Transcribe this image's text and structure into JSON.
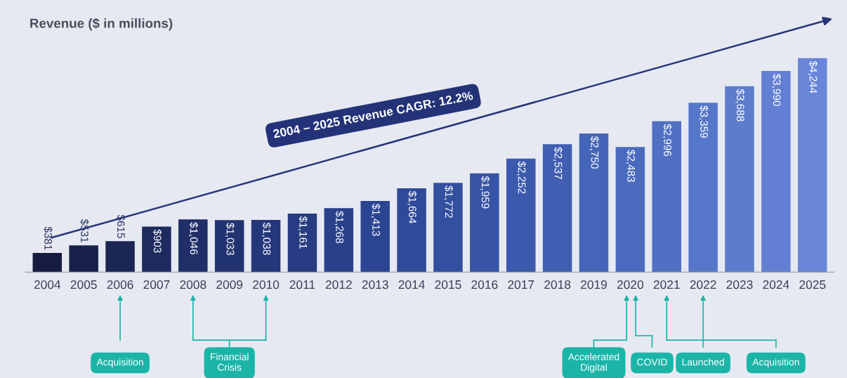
{
  "chart_data": {
    "type": "bar",
    "title": "Revenue ($ in millions)",
    "categories": [
      "2004",
      "2005",
      "2006",
      "2007",
      "2008",
      "2009",
      "2010",
      "2011",
      "2012",
      "2013",
      "2014",
      "2015",
      "2016",
      "2017",
      "2018",
      "2019",
      "2020",
      "2021",
      "2022",
      "2023",
      "2024",
      "2025"
    ],
    "values": [
      381,
      531,
      615,
      903,
      1046,
      1033,
      1038,
      1161,
      1268,
      1413,
      1664,
      1772,
      1959,
      2252,
      2537,
      2750,
      2483,
      2996,
      3359,
      3688,
      3990,
      4244
    ],
    "value_labels": [
      "$381",
      "$531",
      "$615",
      "$903",
      "$1,046",
      "$1,033",
      "$1,038",
      "$1,161",
      "$1,268",
      "$1,413",
      "$1,664",
      "$1,772",
      "$1,959",
      "$2,252",
      "$2,537",
      "$2,750",
      "$2,483",
      "$2,996",
      "$3,359",
      "$3,688",
      "$3,990",
      "$4,244"
    ],
    "colors": [
      "#161c40",
      "#18214a",
      "#1b2654",
      "#1d2a5e",
      "#202f68",
      "#223371",
      "#24377a",
      "#273c82",
      "#29408a",
      "#2c4592",
      "#2f4a99",
      "#334fa0",
      "#3754a7",
      "#3b59ad",
      "#405fb3",
      "#4565b9",
      "#4a6abf",
      "#5070c4",
      "#5676c9",
      "#5c7cce",
      "#627fd3",
      "#6a85d8"
    ],
    "tick_labels": "x",
    "annotations": [
      "2004 – 2025 Revenue CAGR: 12.2%",
      "Acquisition",
      "Financial\nCrisis",
      "Accelerated\nDigital",
      "COVID",
      "Launched",
      "Acquisition"
    ]
  }
}
